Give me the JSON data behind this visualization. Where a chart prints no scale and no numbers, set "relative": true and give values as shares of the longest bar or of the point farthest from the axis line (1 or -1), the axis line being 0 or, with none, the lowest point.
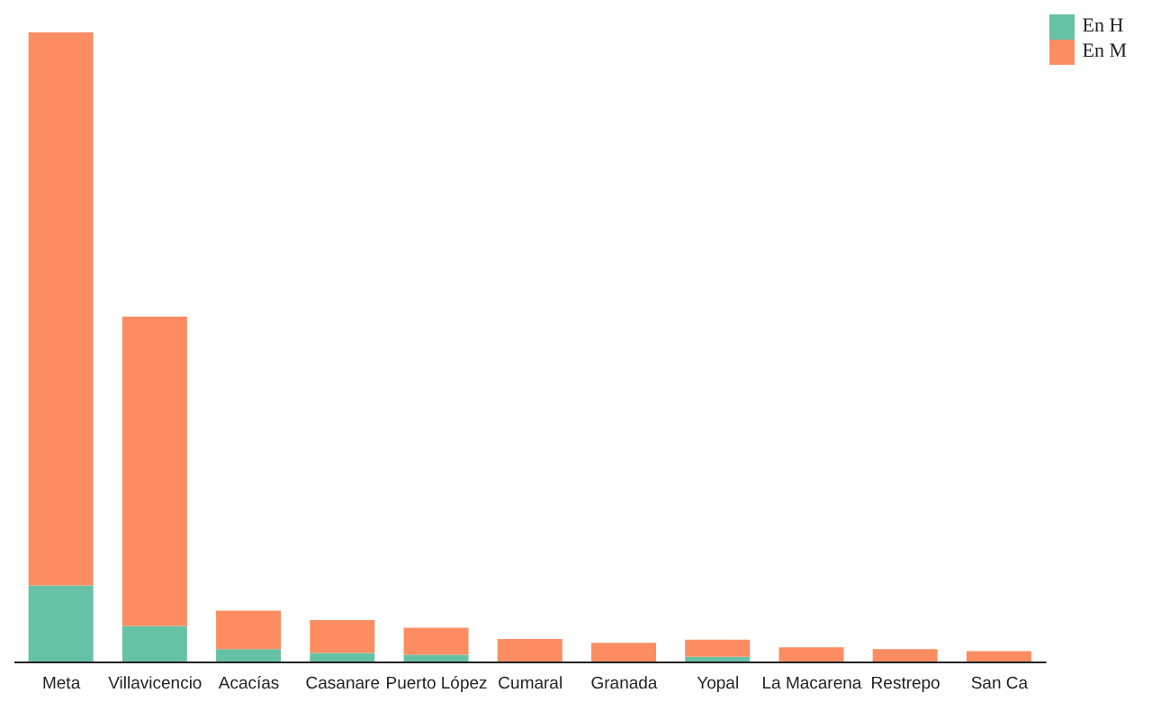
{
  "chart_data": {
    "type": "bar",
    "relative": true,
    "stacked": true,
    "legend": "top right",
    "categories": [
      "Meta",
      "Villavicencio",
      "Acacías",
      "Casanare",
      "Puerto López",
      "Cumaral",
      "Granada",
      "Yopal",
      "La Macarena",
      "Restrepo",
      "San Ca"
    ],
    "series": [
      {
        "name": "En H",
        "color": "#66c2a5",
        "values": [
          0.122,
          0.058,
          0.021,
          0.015,
          0.012,
          null,
          null,
          0.009,
          null,
          null,
          null
        ]
      },
      {
        "name": "En M",
        "color": "#fc8d62",
        "values": [
          0.878,
          0.491,
          0.061,
          0.052,
          0.043,
          0.037,
          0.031,
          0.027,
          0.024,
          0.021,
          0.018
        ]
      }
    ]
  }
}
